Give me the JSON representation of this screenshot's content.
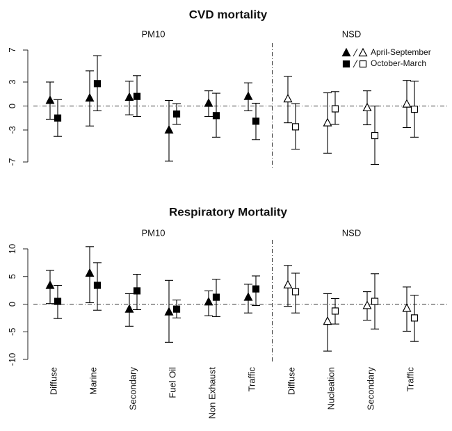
{
  "chart_data": [
    {
      "type": "errorbar",
      "title": "CVD mortality",
      "categories": [
        null,
        null,
        null,
        null,
        null,
        null,
        null,
        null,
        null,
        null
      ],
      "category_groups": [
        "PM10",
        "PM10",
        "PM10",
        "PM10",
        "PM10",
        "PM10",
        "NSD",
        "NSD",
        "NSD",
        "NSD"
      ],
      "filled_groups": [
        "PM10"
      ],
      "ylim": [
        -7,
        7
      ],
      "yticks": [
        -7,
        -3,
        0,
        3,
        7
      ],
      "legend": "top-right",
      "series": [
        {
          "name": "April-September",
          "marker": "triangle",
          "color": "#000000",
          "values": [
            0.7,
            1.0,
            1.1,
            -3.0,
            0.35,
            1.2,
            0.9,
            -2.1,
            -0.2,
            0.25
          ],
          "upper": [
            3.0,
            4.4,
            3.1,
            0.7,
            1.9,
            2.9,
            3.7,
            1.65,
            1.9,
            3.2
          ],
          "lower": [
            -1.65,
            -2.5,
            -1.1,
            -6.9,
            -1.3,
            -0.6,
            -2.1,
            -5.9,
            -2.35,
            -2.7
          ]
        },
        {
          "name": "October-March",
          "marker": "square",
          "color": "#000000",
          "values": [
            -1.5,
            2.8,
            1.2,
            -1.0,
            -1.2,
            -1.9,
            -2.6,
            -0.35,
            -3.7,
            -0.4
          ],
          "upper": [
            0.8,
            6.3,
            3.8,
            0.3,
            1.6,
            0.35,
            0.3,
            1.8,
            0.0,
            3.1
          ],
          "lower": [
            -3.8,
            -0.6,
            -1.3,
            -2.3,
            -3.9,
            -4.2,
            -5.4,
            -2.3,
            -7.3,
            -3.9
          ]
        }
      ]
    },
    {
      "type": "errorbar",
      "title": "Respiratory Mortality",
      "categories": [
        "Diffuse",
        "Marine",
        "Secondary",
        "Fuel Oil",
        "Non Exhaust",
        "Traffic",
        "Diffuse",
        "Nucleation",
        "Secondary",
        "Traffic"
      ],
      "category_groups": [
        "PM10",
        "PM10",
        "PM10",
        "PM10",
        "PM10",
        "PM10",
        "NSD",
        "NSD",
        "NSD",
        "NSD"
      ],
      "filled_groups": [
        "PM10"
      ],
      "ylim": [
        -10,
        10
      ],
      "yticks": [
        -10,
        -5,
        0,
        5,
        10
      ],
      "series": [
        {
          "name": null,
          "marker": "triangle",
          "color": "#000000",
          "values": [
            3.4,
            5.6,
            -0.9,
            -1.4,
            0.4,
            1.25,
            3.5,
            -3.1,
            -0.25,
            -0.75
          ],
          "upper": [
            6.1,
            10.4,
            1.9,
            4.3,
            2.4,
            3.6,
            7.0,
            1.9,
            2.25,
            3.1
          ],
          "lower": [
            0.1,
            0.25,
            -4.0,
            -6.9,
            -2.1,
            -1.6,
            -0.4,
            -8.5,
            -2.9,
            -4.9
          ]
        },
        {
          "name": null,
          "marker": "square",
          "color": "#000000",
          "values": [
            0.5,
            3.4,
            2.4,
            -0.9,
            1.25,
            2.75,
            2.25,
            -1.25,
            0.5,
            -2.5
          ],
          "upper": [
            3.4,
            7.5,
            5.4,
            0.75,
            4.5,
            5.1,
            5.6,
            1.0,
            5.5,
            1.6
          ],
          "lower": [
            -2.6,
            -1.1,
            -1.0,
            -2.5,
            -2.25,
            -0.25,
            -1.6,
            -3.6,
            -4.5,
            -6.75
          ]
        }
      ]
    }
  ]
}
